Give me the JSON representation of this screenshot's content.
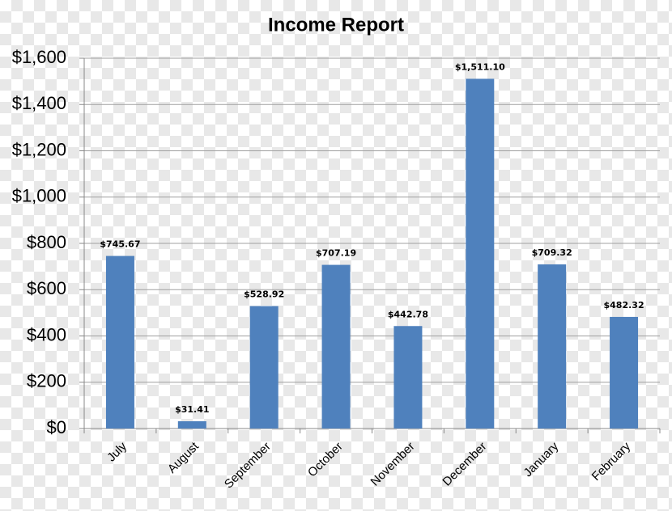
{
  "chart_data": {
    "type": "bar",
    "title": "Income Report",
    "categories": [
      "July",
      "August",
      "September",
      "October",
      "November",
      "December",
      "January",
      "February"
    ],
    "values": [
      745.67,
      31.41,
      528.92,
      707.19,
      442.78,
      1511.1,
      709.32,
      482.32
    ],
    "value_labels": [
      "$745.67",
      "$31.41",
      "$528.92",
      "$707.19",
      "$442.78",
      "$1,511.10",
      "$709.32",
      "$482.32"
    ],
    "color": "#4f81bd",
    "ylim": [
      0,
      1600
    ],
    "yticks": [
      {
        "value": 0,
        "label": "$0"
      },
      {
        "value": 200,
        "label": "$200"
      },
      {
        "value": 400,
        "label": "$400"
      },
      {
        "value": 600,
        "label": "$600"
      },
      {
        "value": 800,
        "label": "$800"
      },
      {
        "value": 1000,
        "label": "$1,000"
      },
      {
        "value": 1200,
        "label": "$1,200"
      },
      {
        "value": 1400,
        "label": "$1,400"
      },
      {
        "value": 1600,
        "label": "$1,600"
      }
    ],
    "grid": true
  }
}
